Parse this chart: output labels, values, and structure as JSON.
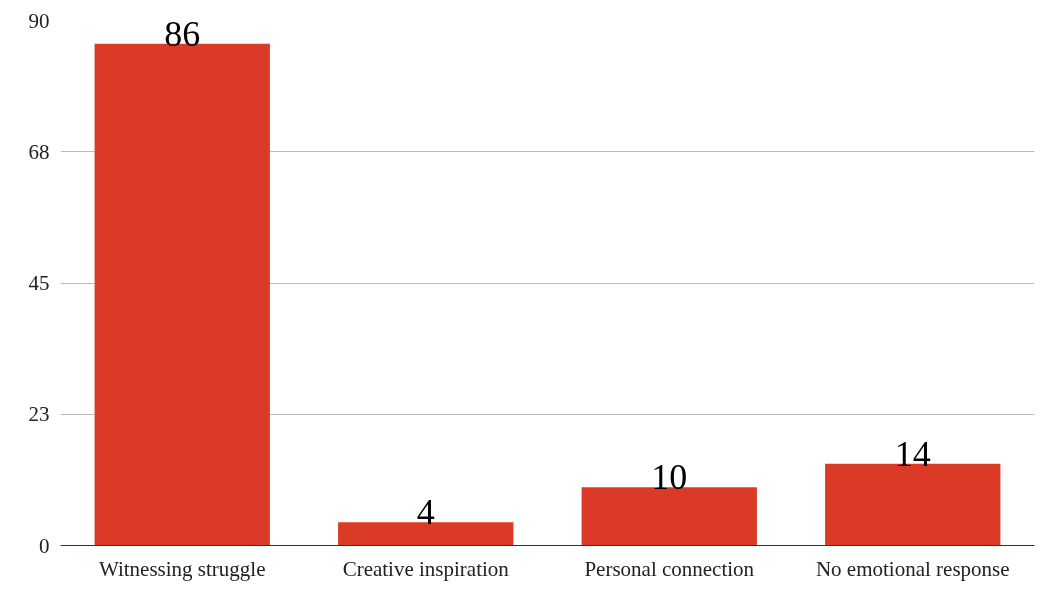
{
  "chart_data": {
    "type": "bar",
    "categories": [
      "Witnessing struggle",
      "Creative inspiration",
      "Personal connection",
      "No emotional response"
    ],
    "values": [
      86,
      4,
      10,
      14
    ],
    "color": "#db3b26",
    "ylim": [
      0,
      90
    ],
    "yticks": [
      0,
      {
        "value": 22.5,
        "label": "23"
      },
      45,
      {
        "value": 67.5,
        "label": "68"
      },
      90
    ],
    "grid": "y",
    "data_labels": true
  }
}
